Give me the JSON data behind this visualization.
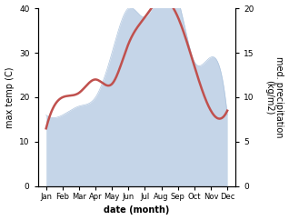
{
  "months": [
    "Jan",
    "Feb",
    "Mar",
    "Apr",
    "May",
    "Jun",
    "Jul",
    "Aug",
    "Sep",
    "Oct",
    "Nov",
    "Dec"
  ],
  "month_positions": [
    0.5,
    1.5,
    2.5,
    3.5,
    4.5,
    5.5,
    6.5,
    7.5,
    8.5,
    9.5,
    10.5,
    11.5
  ],
  "temperature": [
    13,
    20,
    21,
    24,
    23,
    32,
    38,
    42,
    38,
    27,
    17,
    17
  ],
  "precipitation": [
    8,
    8,
    9,
    10,
    15,
    20,
    19,
    22,
    21,
    14,
    14.5,
    8
  ],
  "temp_color": "#c0504d",
  "precip_fill_color": "#c5d5e8",
  "precip_edge_color": "#adc4de",
  "temp_ylim": [
    0,
    40
  ],
  "precip_ylim": [
    0,
    20
  ],
  "ylabel_left": "max temp (C)",
  "ylabel_right": "med. precipitation\n(kg/m2)",
  "xlabel": "date (month)",
  "background_color": "#ffffff",
  "temp_linewidth": 1.8,
  "xlim": [
    0,
    12
  ]
}
